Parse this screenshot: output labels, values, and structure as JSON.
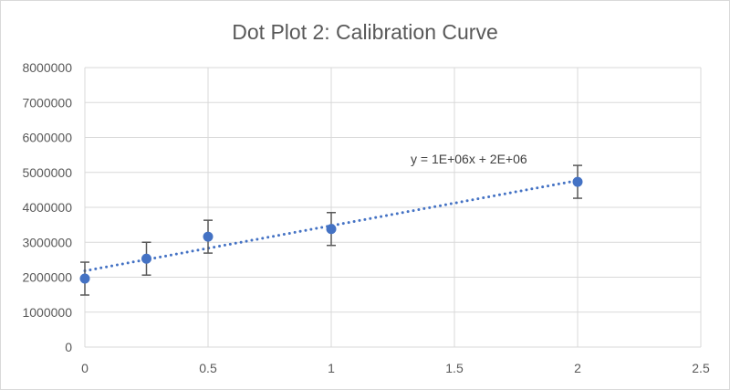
{
  "chart_data": {
    "type": "scatter",
    "title": "Dot Plot 2: Calibration Curve",
    "xlabel": "",
    "ylabel": "",
    "xlim": [
      0,
      2.5
    ],
    "ylim": [
      0,
      8000000
    ],
    "x_ticks": [
      0,
      0.5,
      1,
      1.5,
      2,
      2.5
    ],
    "y_ticks": [
      0,
      1000000,
      2000000,
      3000000,
      4000000,
      5000000,
      6000000,
      7000000,
      8000000
    ],
    "grid": true,
    "legend": "none",
    "series": [
      {
        "x": [
          0,
          0.25,
          0.5,
          1,
          2
        ],
        "y": [
          1960000,
          2530000,
          3160000,
          3380000,
          4730000
        ],
        "error": [
          470000,
          470000,
          470000,
          470000,
          470000
        ],
        "color": "#4472c4"
      }
    ],
    "trendline": {
      "type": "linear",
      "slope": 1293000,
      "intercept": 2182000,
      "color": "#4472c4",
      "style": "dotted",
      "equation_label": "y = 1E+06x + 2E+06"
    }
  }
}
